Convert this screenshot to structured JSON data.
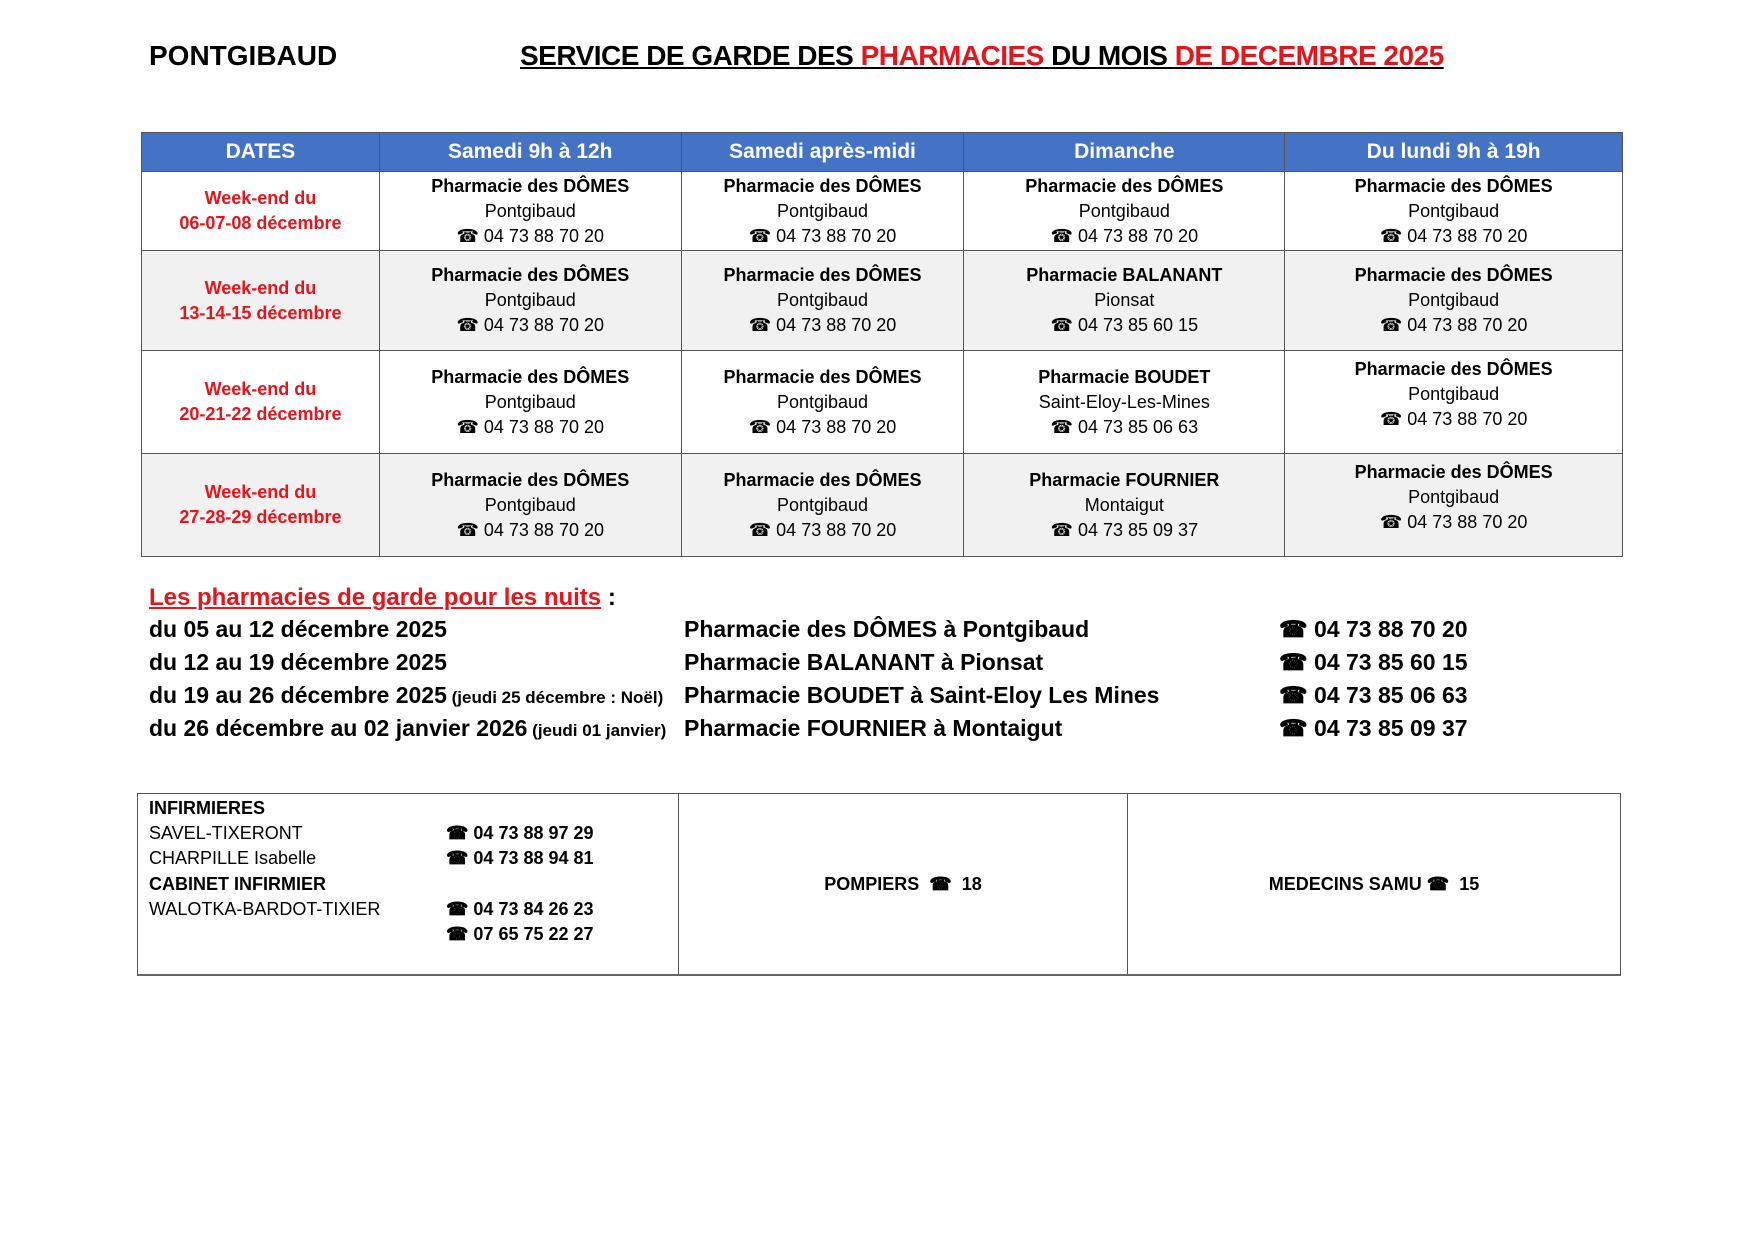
{
  "header": {
    "town": "PONTGIBAUD",
    "title_part1": "SERVICE DE GARDE DES ",
    "title_part2": "PHARMACIES",
    "title_part3": " DU MOIS ",
    "title_part4": "DE DECEMBRE 2025"
  },
  "colors": {
    "header_bg": "#4472c4",
    "accent_red": "#e8141b"
  },
  "table": {
    "columns": [
      "DATES",
      "Samedi 9h à 12h",
      "Samedi après-midi",
      "Dimanche",
      "Du lundi 9h à 19h"
    ],
    "rows": [
      {
        "date1": "Week-end du",
        "date2": "06-07-08 décembre",
        "cells": [
          {
            "name": "Pharmacie des DÔMES",
            "town": "Pontgibaud",
            "phone": "04 73 88 70 20"
          },
          {
            "name": "Pharmacie des DÔMES",
            "town": "Pontgibaud",
            "phone": "04 73 88 70 20"
          },
          {
            "name": "Pharmacie des DÔMES",
            "town": "Pontgibaud",
            "phone": "04 73 88 70 20"
          },
          {
            "name": "Pharmacie des DÔMES",
            "town": "Pontgibaud",
            "phone": "04 73 88 70 20"
          }
        ]
      },
      {
        "date1": "Week-end du",
        "date2": "13-14-15 décembre",
        "cells": [
          {
            "name": "Pharmacie des DÔMES",
            "town": "Pontgibaud",
            "phone": "04 73 88 70 20"
          },
          {
            "name": "Pharmacie des DÔMES",
            "town": "Pontgibaud",
            "phone": "04 73 88 70 20"
          },
          {
            "name": "Pharmacie BALANANT",
            "town": "Pionsat",
            "phone": "04 73 85 60 15"
          },
          {
            "name": "Pharmacie des DÔMES",
            "town": "Pontgibaud",
            "phone": "04 73 88 70 20"
          }
        ]
      },
      {
        "date1": "Week-end du",
        "date2": "20-21-22 décembre",
        "cells": [
          {
            "name": "Pharmacie des DÔMES",
            "town": "Pontgibaud",
            "phone": "04 73 88 70 20"
          },
          {
            "name": "Pharmacie des DÔMES",
            "town": "Pontgibaud",
            "phone": "04 73 88 70 20"
          },
          {
            "name": "Pharmacie BOUDET",
            "town": "Saint-Eloy-Les-Mines",
            "phone": "04 73 85 06 63"
          },
          {
            "name": "Pharmacie des DÔMES",
            "town": "Pontgibaud",
            "phone": "04 73 88 70 20"
          }
        ]
      },
      {
        "date1": "Week-end du",
        "date2": "27-28-29 décembre",
        "cells": [
          {
            "name": "Pharmacie des DÔMES",
            "town": "Pontgibaud",
            "phone": "04 73 88 70 20"
          },
          {
            "name": "Pharmacie des DÔMES",
            "town": "Pontgibaud",
            "phone": "04 73 88 70 20"
          },
          {
            "name": "Pharmacie FOURNIER",
            "town": "Montaigut",
            "phone": "04 73 85 09 37"
          },
          {
            "name": "Pharmacie des DÔMES",
            "town": "Pontgibaud",
            "phone": "04 73 88 70 20"
          }
        ]
      }
    ]
  },
  "nights": {
    "heading": "Les pharmacies de garde pour les nuits",
    "colon": " :",
    "rows": [
      {
        "period": "du 05 au 12 décembre 2025",
        "note": "",
        "pharmacy": "Pharmacie des DÔMES à Pontgibaud",
        "phone": "04 73 88 70 20"
      },
      {
        "period": "du 12 au 19 décembre 2025",
        "note": "",
        "pharmacy": "Pharmacie BALANANT à Pionsat",
        "phone": "04 73 85 60 15"
      },
      {
        "period": "du 19 au 26 décembre 2025",
        "note": " (jeudi 25 décembre : Noël)",
        "pharmacy": "Pharmacie BOUDET à Saint-Eloy Les Mines",
        "phone": "04 73 85 06 63"
      },
      {
        "period": "du 26 décembre au 02 janvier 2026",
        "note": " (jeudi 01 janvier)",
        "pharmacy": "Pharmacie FOURNIER à Montaigut",
        "phone": "04 73 85 09 37"
      }
    ]
  },
  "contacts": {
    "nurses_heading": "INFIRMIERES",
    "nurse1": "SAVEL-TIXERONT",
    "nurse1_phone": "04 73 88 97 29",
    "nurse2": "CHARPILLE Isabelle",
    "nurse2_phone": "04 73 88 94 81",
    "cabinet_heading": "CABINET INFIRMIER",
    "cabinet": "WALOTKA-BARDOT-TIXIER",
    "cabinet_phone1": "04 73 84 26 23",
    "cabinet_phone2": "07 65 75 22 27",
    "pompiers_label": "POMPIERS",
    "pompiers_number": "18",
    "samu_label": "MEDECINS SAMU",
    "samu_number": "15"
  }
}
